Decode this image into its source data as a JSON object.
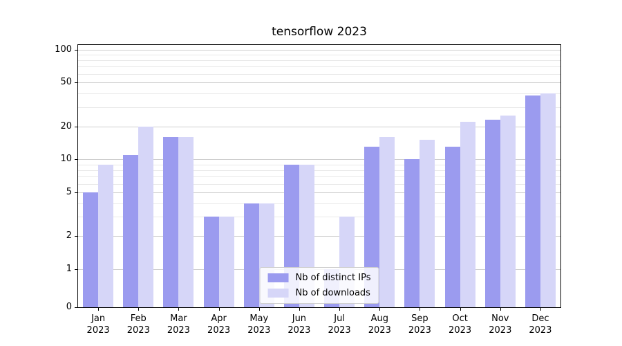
{
  "chart_data": {
    "type": "bar",
    "title": "tensorflow 2023",
    "categories": [
      "Jan 2023",
      "Feb 2023",
      "Mar 2023",
      "Apr 2023",
      "May 2023",
      "Jun 2023",
      "Jul 2023",
      "Aug 2023",
      "Sep 2023",
      "Oct 2023",
      "Nov 2023",
      "Dec 2023"
    ],
    "series": [
      {
        "name": "Nb of distinct IPs",
        "color": "#9b9bef",
        "values": [
          5,
          11,
          16,
          3,
          4,
          9,
          1,
          13,
          10,
          13,
          23,
          38
        ]
      },
      {
        "name": "Nb of downloads",
        "color": "#d6d6f8",
        "values": [
          9,
          20,
          16,
          3,
          4,
          9,
          3,
          16,
          15,
          22,
          25,
          40
        ]
      }
    ],
    "yscale": "symlog",
    "ylim": [
      0,
      110
    ],
    "yticks_major": [
      0,
      1,
      2,
      5,
      10,
      20,
      50,
      100
    ],
    "yticks_minor": [
      3,
      4,
      6,
      7,
      8,
      9,
      30,
      40,
      60,
      70,
      80,
      90
    ],
    "xlabel": "",
    "ylabel": "",
    "grid": "horizontal",
    "legend_position": "lower center"
  }
}
